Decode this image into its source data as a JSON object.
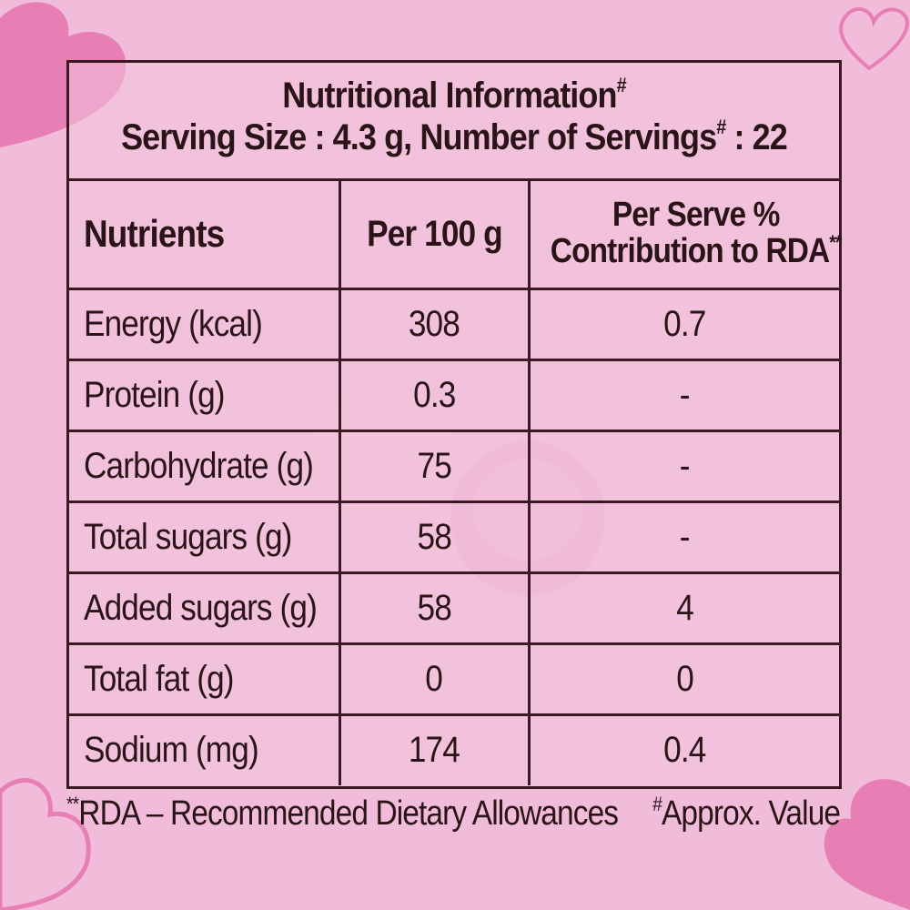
{
  "title": "Nutritional Information",
  "title_mark": "#",
  "serving": {
    "prefix": "Serving Size : 4.3 g, Number of Servings",
    "mark": "#",
    "suffix": " : 22"
  },
  "headers": {
    "nutrients": "Nutrients",
    "per100": "Per 100 g",
    "rda_line1": "Per Serve %",
    "rda_line2": "Contribution to RDA",
    "rda_mark": "**"
  },
  "rows": [
    {
      "nutrient": "Energy (kcal)",
      "per100": "308",
      "rda": "0.7"
    },
    {
      "nutrient": "Protein (g)",
      "per100": "0.3",
      "rda": "-"
    },
    {
      "nutrient": "Carbohydrate (g)",
      "per100": "75",
      "rda": "-"
    },
    {
      "nutrient": "Total sugars (g)",
      "per100": "58",
      "rda": "-"
    },
    {
      "nutrient": "Added sugars (g)",
      "per100": "58",
      "rda": "4"
    },
    {
      "nutrient": "Total fat (g)",
      "per100": "0",
      "rda": "0"
    },
    {
      "nutrient": "Sodium (mg)",
      "per100": "174",
      "rda": "0.4"
    }
  ],
  "footer": {
    "rda_mark": "**",
    "rda_note": "RDA – Recommended Dietary Allowances",
    "approx_mark": "#",
    "approx_note": "Approx. Value"
  },
  "colors": {
    "background": "#f0bcd9",
    "heart_pink": "#e77fb5",
    "text": "#2a1418"
  }
}
